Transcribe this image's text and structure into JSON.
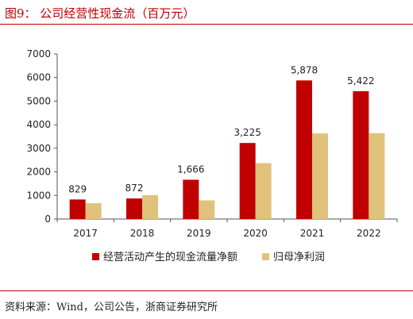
{
  "header": {
    "title": "图9：  公司经营性现金流（百万元）"
  },
  "footer": {
    "source": "资料来源：Wind，公司公告，浙商证券研究所"
  },
  "colors": {
    "accent": "#b70000",
    "series1": "#c00000",
    "series2": "#e0c27c"
  },
  "chart_data": {
    "type": "bar",
    "categories": [
      "2017",
      "2018",
      "2019",
      "2020",
      "2021",
      "2022"
    ],
    "series": [
      {
        "name": "经营活动产生的现金流量净额",
        "values": [
          829,
          872,
          1666,
          3225,
          5878,
          5422
        ],
        "data_labels": [
          "829",
          "872",
          "1,666",
          "3,225",
          "5,878",
          "5,422"
        ]
      },
      {
        "name": "归母净利润",
        "values": [
          670,
          1010,
          790,
          2370,
          3630,
          3640
        ]
      }
    ],
    "yticks": [
      "0",
      "1000",
      "2000",
      "3000",
      "4000",
      "5000",
      "6000",
      "7000"
    ],
    "ylim": [
      0,
      7000
    ],
    "grid": false,
    "legend_position": "bottom"
  }
}
